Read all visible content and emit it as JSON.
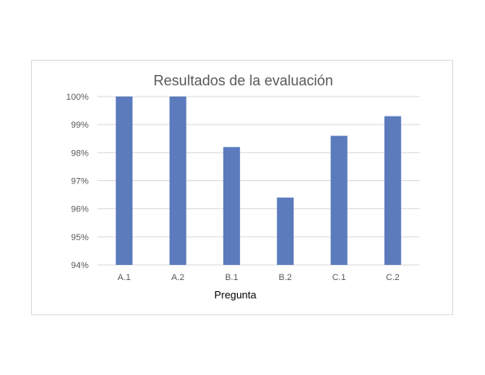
{
  "chart_data": {
    "type": "bar",
    "title": "Resultados de la evaluación",
    "xlabel": "Pregunta",
    "ylabel": "",
    "categories": [
      "A.1",
      "A.2",
      "B.1",
      "B.2",
      "C.1",
      "C.2"
    ],
    "values": [
      100,
      100,
      98.2,
      96.4,
      98.6,
      99.3
    ],
    "ylim": [
      94,
      100
    ],
    "yticks": [
      "94%",
      "95%",
      "96%",
      "97%",
      "98%",
      "99%",
      "100%"
    ],
    "grid": true,
    "legend": "none",
    "colors": {
      "bar": "#5b7bbd",
      "grid": "#d9d9d9",
      "text": "#595959",
      "title": "#595959",
      "axis_title": "#000000"
    }
  }
}
